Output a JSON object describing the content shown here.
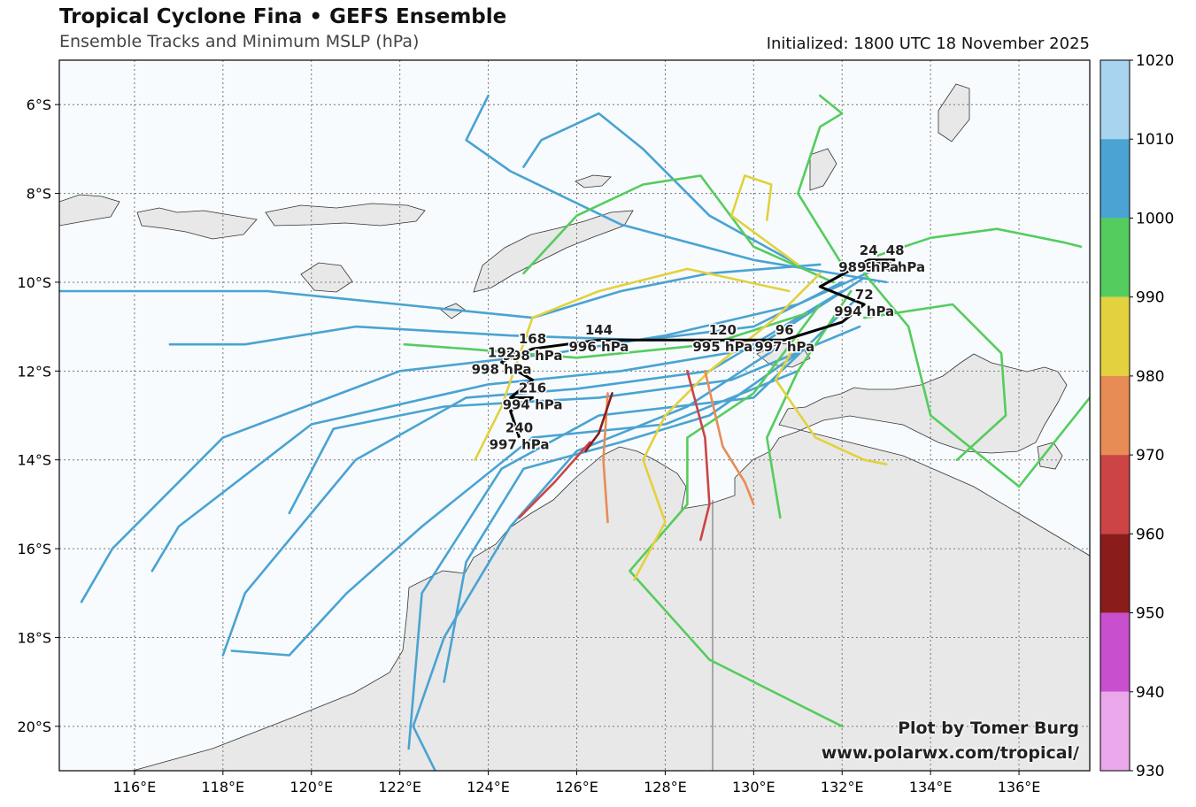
{
  "title": "Tropical Cyclone Fina • GEFS Ensemble",
  "subtitle": "Ensemble Tracks and Minimum MSLP (hPa)",
  "initialized": "Initialized: 1800 UTC 18 November 2025",
  "credit_line1": "Plot by Tomer Burg",
  "credit_line2": "www.polarwx.com/tropical/",
  "map": {
    "lon_range": [
      114.3,
      137.6
    ],
    "lat_range": [
      -21.0,
      -5.0
    ],
    "lon_ticks": [
      "116°E",
      "118°E",
      "120°E",
      "122°E",
      "124°E",
      "126°E",
      "128°E",
      "130°E",
      "132°E",
      "134°E",
      "136°E"
    ],
    "lat_ticks": [
      "6°S",
      "8°S",
      "10°S",
      "12°S",
      "14°S",
      "16°S",
      "18°S",
      "20°S"
    ],
    "grid": true,
    "ocean_color": "#f7fbfd",
    "land_color": "#e8e8e8"
  },
  "colorbar": {
    "ticks": [
      "1020",
      "1010",
      "1000",
      "990",
      "980",
      "970",
      "960",
      "950",
      "940",
      "930"
    ],
    "bands": [
      {
        "range": [
          1010,
          1020
        ],
        "color": "#a8d4ef"
      },
      {
        "range": [
          1000,
          1010
        ],
        "color": "#4aa3d2"
      },
      {
        "range": [
          990,
          1000
        ],
        "color": "#55cc5e"
      },
      {
        "range": [
          980,
          990
        ],
        "color": "#e3d13e"
      },
      {
        "range": [
          970,
          980
        ],
        "color": "#e88c55"
      },
      {
        "range": [
          960,
          970
        ],
        "color": "#cc4444"
      },
      {
        "range": [
          950,
          960
        ],
        "color": "#8b1c1c"
      },
      {
        "range": [
          940,
          950
        ],
        "color": "#c84fcd"
      },
      {
        "range": [
          930,
          940
        ],
        "color": "#eaa8ea"
      }
    ]
  },
  "chart_data": {
    "type": "line",
    "mean_track": {
      "points": [
        {
          "lon": 133.2,
          "lat": -9.5,
          "hour": "48",
          "mslp": "994 hPa"
        },
        {
          "lon": 132.6,
          "lat": -9.5,
          "hour": "24",
          "mslp": "989 hPa"
        },
        {
          "lon": 131.5,
          "lat": -10.1,
          "hour": "",
          "mslp": ""
        },
        {
          "lon": 132.5,
          "lat": -10.5,
          "hour": "72",
          "mslp": "994 hPa"
        },
        {
          "lon": 132.0,
          "lat": -10.9,
          "hour": "",
          "mslp": ""
        },
        {
          "lon": 130.7,
          "lat": -11.3,
          "hour": "96",
          "mslp": "997 hPa"
        },
        {
          "lon": 129.3,
          "lat": -11.3,
          "hour": "120",
          "mslp": "995 hPa"
        },
        {
          "lon": 126.5,
          "lat": -11.3,
          "hour": "144",
          "mslp": "996 hPa"
        },
        {
          "lon": 125.0,
          "lat": -11.5,
          "hour": "168",
          "mslp": "998 hPa"
        },
        {
          "lon": 124.3,
          "lat": -11.8,
          "hour": "192",
          "mslp": "998 hPa"
        },
        {
          "lon": 125.0,
          "lat": -12.2,
          "hour": "",
          "mslp": ""
        },
        {
          "lon": 124.5,
          "lat": -12.6,
          "hour": "",
          "mslp": ""
        },
        {
          "lon": 125.0,
          "lat": -12.6,
          "hour": "216",
          "mslp": "994 hPa"
        },
        {
          "lon": 124.5,
          "lat": -12.9,
          "hour": "",
          "mslp": ""
        },
        {
          "lon": 124.7,
          "lat": -13.5,
          "hour": "240",
          "mslp": "997 hPa"
        }
      ]
    },
    "members": [
      {
        "color": "#4aa3d2",
        "points": [
          [
            133.0,
            -9.6
          ],
          [
            131.0,
            -10.5
          ],
          [
            128.0,
            -11.2
          ],
          [
            125.5,
            -11.6
          ],
          [
            122.0,
            -12.0
          ],
          [
            118.0,
            -13.5
          ],
          [
            115.5,
            -16.0
          ],
          [
            114.8,
            -17.2
          ]
        ]
      },
      {
        "color": "#4aa3d2",
        "points": [
          [
            132.5,
            -9.9
          ],
          [
            130.0,
            -11.5
          ],
          [
            127.0,
            -12.0
          ],
          [
            124.0,
            -12.3
          ],
          [
            120.0,
            -13.2
          ],
          [
            117.0,
            -15.5
          ],
          [
            116.4,
            -16.5
          ]
        ]
      },
      {
        "color": "#4aa3d2",
        "points": [
          [
            132.0,
            -10.2
          ],
          [
            129.0,
            -12.0
          ],
          [
            126.0,
            -12.4
          ],
          [
            123.5,
            -12.6
          ],
          [
            121.0,
            -14.0
          ],
          [
            118.5,
            -17.0
          ],
          [
            118.0,
            -18.4
          ]
        ]
      },
      {
        "color": "#4aa3d2",
        "points": [
          [
            132.3,
            -10.4
          ],
          [
            130.0,
            -12.6
          ],
          [
            126.5,
            -13.0
          ],
          [
            124.3,
            -14.2
          ],
          [
            122.5,
            -17.0
          ],
          [
            122.2,
            -20.5
          ]
        ]
      },
      {
        "color": "#4aa3d2",
        "points": [
          [
            132.0,
            -10.0
          ],
          [
            130.0,
            -11.0
          ],
          [
            127.5,
            -11.3
          ],
          [
            124.5,
            -11.2
          ],
          [
            121.0,
            -11.0
          ],
          [
            118.5,
            -11.4
          ],
          [
            116.8,
            -11.4
          ]
        ]
      },
      {
        "color": "#4aa3d2",
        "points": [
          [
            131.5,
            -9.6
          ],
          [
            129.0,
            -9.8
          ],
          [
            127.0,
            -10.2
          ],
          [
            125.0,
            -10.8
          ],
          [
            122.0,
            -10.5
          ],
          [
            119.0,
            -10.2
          ],
          [
            114.3,
            -10.2
          ]
        ]
      },
      {
        "color": "#4aa3d2",
        "points": [
          [
            131.0,
            -9.6
          ],
          [
            129.0,
            -8.5
          ],
          [
            127.5,
            -7.0
          ],
          [
            126.5,
            -6.2
          ],
          [
            125.2,
            -6.8
          ],
          [
            124.8,
            -7.4
          ]
        ]
      },
      {
        "color": "#4aa3d2",
        "points": [
          [
            130.5,
            -11.5
          ],
          [
            128.5,
            -12.8
          ],
          [
            126.0,
            -13.8
          ],
          [
            124.5,
            -15.5
          ],
          [
            123.0,
            -18.0
          ],
          [
            122.3,
            -20.0
          ],
          [
            122.8,
            -21.0
          ]
        ]
      },
      {
        "color": "#4aa3d2",
        "points": [
          [
            131.0,
            -12.0
          ],
          [
            128.0,
            -13.2
          ],
          [
            125.0,
            -13.5
          ],
          [
            122.5,
            -15.5
          ],
          [
            120.8,
            -17.0
          ],
          [
            119.5,
            -18.4
          ],
          [
            118.2,
            -18.3
          ]
        ]
      },
      {
        "color": "#4aa3d2",
        "points": [
          [
            132.4,
            -11.0
          ],
          [
            129.5,
            -12.2
          ],
          [
            126.5,
            -12.6
          ],
          [
            123.0,
            -12.8
          ],
          [
            120.5,
            -13.3
          ],
          [
            119.5,
            -15.2
          ]
        ]
      },
      {
        "color": "#4aa3d2",
        "points": [
          [
            133.0,
            -10.0
          ],
          [
            130.0,
            -9.5
          ],
          [
            127.0,
            -8.7
          ],
          [
            124.5,
            -7.5
          ],
          [
            123.5,
            -6.8
          ],
          [
            124.0,
            -5.8
          ]
        ]
      },
      {
        "color": "#4aa3d2",
        "points": [
          [
            131.0,
            -11.6
          ],
          [
            129.0,
            -13.0
          ],
          [
            127.0,
            -13.6
          ],
          [
            124.8,
            -14.2
          ],
          [
            123.5,
            -16.3
          ],
          [
            123.0,
            -19.0
          ]
        ]
      },
      {
        "color": "#55cc5e",
        "points": [
          [
            132.8,
            -9.4
          ],
          [
            134.0,
            -9.0
          ],
          [
            135.5,
            -8.8
          ],
          [
            137.0,
            -9.1
          ],
          [
            137.4,
            -9.2
          ]
        ]
      },
      {
        "color": "#55cc5e",
        "points": [
          [
            132.5,
            -9.8
          ],
          [
            133.5,
            -11.0
          ],
          [
            134.0,
            -13.0
          ],
          [
            136.0,
            -14.6
          ],
          [
            137.6,
            -12.6
          ]
        ]
      },
      {
        "color": "#55cc5e",
        "points": [
          [
            132.0,
            -9.6
          ],
          [
            131.0,
            -8.0
          ],
          [
            131.5,
            -6.5
          ],
          [
            132.0,
            -6.2
          ],
          [
            131.5,
            -5.8
          ]
        ]
      },
      {
        "color": "#55cc5e",
        "points": [
          [
            132.2,
            -10.2
          ],
          [
            131.0,
            -12.0
          ],
          [
            130.3,
            -13.5
          ],
          [
            130.6,
            -15.3
          ]
        ]
      },
      {
        "color": "#55cc5e",
        "points": [
          [
            131.5,
            -10.5
          ],
          [
            130.0,
            -12.5
          ],
          [
            128.5,
            -13.5
          ],
          [
            128.5,
            -15.0
          ],
          [
            127.2,
            -16.5
          ],
          [
            129.0,
            -18.5
          ],
          [
            132.0,
            -20.0
          ]
        ]
      },
      {
        "color": "#55cc5e",
        "points": [
          [
            131.8,
            -10.0
          ],
          [
            130.0,
            -9.2
          ],
          [
            128.8,
            -7.6
          ],
          [
            127.5,
            -7.8
          ],
          [
            126.0,
            -8.5
          ],
          [
            124.8,
            -9.8
          ]
        ]
      },
      {
        "color": "#55cc5e",
        "points": [
          [
            132.5,
            -10.8
          ],
          [
            134.5,
            -10.5
          ],
          [
            135.6,
            -11.6
          ],
          [
            135.7,
            -13.0
          ],
          [
            134.6,
            -14.0
          ]
        ]
      },
      {
        "color": "#55cc5e",
        "points": [
          [
            131.2,
            -10.7
          ],
          [
            129.0,
            -11.4
          ],
          [
            126.0,
            -11.7
          ],
          [
            123.5,
            -11.5
          ],
          [
            122.1,
            -11.4
          ]
        ]
      },
      {
        "color": "#e3d13e",
        "points": [
          [
            131.5,
            -9.8
          ],
          [
            130.5,
            -10.8
          ],
          [
            129.0,
            -12.0
          ],
          [
            128.0,
            -13.0
          ],
          [
            127.5,
            -14.0
          ],
          [
            128.0,
            -15.4
          ],
          [
            127.3,
            -16.7
          ]
        ]
      },
      {
        "color": "#e3d13e",
        "points": [
          [
            131.0,
            -9.6
          ],
          [
            129.5,
            -8.5
          ],
          [
            129.8,
            -7.6
          ],
          [
            130.4,
            -7.8
          ],
          [
            130.3,
            -8.6
          ]
        ]
      },
      {
        "color": "#e3d13e",
        "points": [
          [
            130.8,
            -10.2
          ],
          [
            128.5,
            -9.7
          ],
          [
            126.5,
            -10.2
          ],
          [
            125.0,
            -10.8
          ],
          [
            124.3,
            -12.8
          ],
          [
            123.7,
            -14.0
          ]
        ]
      },
      {
        "color": "#e3d13e",
        "points": [
          [
            131.0,
            -11.3
          ],
          [
            130.5,
            -12.2
          ],
          [
            131.4,
            -13.5
          ],
          [
            132.5,
            -14.0
          ],
          [
            133.0,
            -14.1
          ]
        ]
      },
      {
        "color": "#e88c55",
        "points": [
          [
            128.9,
            -12.0
          ],
          [
            129.3,
            -13.7
          ],
          [
            129.8,
            -14.5
          ],
          [
            130.0,
            -15.0
          ]
        ]
      },
      {
        "color": "#e88c55",
        "points": [
          [
            126.7,
            -12.5
          ],
          [
            126.6,
            -14.0
          ],
          [
            126.7,
            -15.4
          ]
        ]
      },
      {
        "color": "#cc4444",
        "points": [
          [
            126.3,
            -13.6
          ],
          [
            125.5,
            -14.5
          ],
          [
            124.7,
            -15.3
          ]
        ]
      },
      {
        "color": "#cc4444",
        "points": [
          [
            128.5,
            -12.0
          ],
          [
            128.9,
            -13.5
          ],
          [
            129.0,
            -15.0
          ],
          [
            128.8,
            -15.8
          ]
        ]
      },
      {
        "color": "#8b1c1c",
        "points": [
          [
            126.8,
            -12.5
          ],
          [
            126.5,
            -13.4
          ],
          [
            126.2,
            -13.8
          ]
        ]
      }
    ]
  }
}
